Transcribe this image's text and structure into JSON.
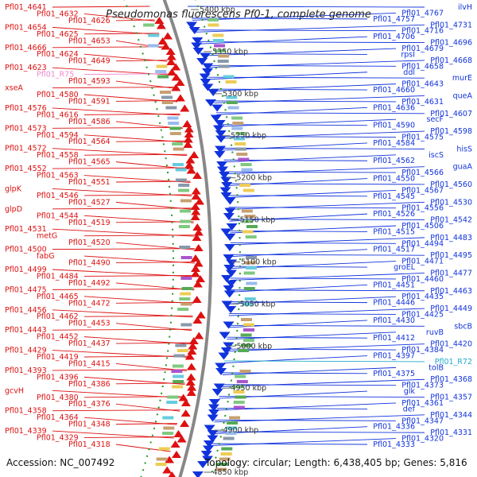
{
  "title": "Pseudomonas fluorescens Pf0-1, complete genome",
  "footer": {
    "accession": "Accession: NC_007492",
    "topology": "Topology: circular; Length: 6,438,405 bp; Genes: 5,816"
  },
  "colors": {
    "minus_strand": "#dd1111",
    "plus_strand": "#1133dd",
    "rna": "#ee88cc",
    "trna": "#22aacc",
    "backbone": "#888888",
    "tick": "#229922"
  },
  "scale_ticks": [
    "5400 kbp",
    "5350 kbp",
    "5300 kbp",
    "5250 kbp",
    "5200 kbp",
    "5150 kbp",
    "5100 kbp",
    "5050 kbp",
    "5000 kbp",
    "4950 kbp",
    "4900 kbp",
    "4850 kbp"
  ],
  "left_labels": [
    {
      "text": "Pfl01_4641",
      "strand": "minus"
    },
    {
      "text": "Pfl01_4632",
      "strand": "minus"
    },
    {
      "text": "Pfl01_4626",
      "strand": "minus"
    },
    {
      "text": "Pfl01_4654",
      "strand": "minus"
    },
    {
      "text": "Pfl01_4625",
      "strand": "minus"
    },
    {
      "text": "Pfl01_4653",
      "strand": "minus"
    },
    {
      "text": "Pfl01_4666",
      "strand": "minus"
    },
    {
      "text": "Pfl01_4624",
      "strand": "minus"
    },
    {
      "text": "Pfl01_4649",
      "strand": "minus"
    },
    {
      "text": "Pfl01_4623",
      "strand": "minus"
    },
    {
      "text": "Pfl01_R75",
      "strand": "rna"
    },
    {
      "text": "Pfl01_4593",
      "strand": "minus"
    },
    {
      "text": "xseA",
      "strand": "minus"
    },
    {
      "text": "Pfl01_4580",
      "strand": "minus"
    },
    {
      "text": "Pfl01_4591",
      "strand": "minus"
    },
    {
      "text": "Pfl01_4576",
      "strand": "minus"
    },
    {
      "text": "Pfl01_4616",
      "strand": "minus"
    },
    {
      "text": "Pfl01_4586",
      "strand": "minus"
    },
    {
      "text": "Pfl01_4573",
      "strand": "minus"
    },
    {
      "text": "Pfl01_4594",
      "strand": "minus"
    },
    {
      "text": "Pfl01_4564",
      "strand": "minus"
    },
    {
      "text": "Pfl01_4572",
      "strand": "minus"
    },
    {
      "text": "Pfl01_4558",
      "strand": "minus"
    },
    {
      "text": "Pfl01_4565",
      "strand": "minus"
    },
    {
      "text": "Pfl01_4552",
      "strand": "minus"
    },
    {
      "text": "Pfl01_4563",
      "strand": "minus"
    },
    {
      "text": "Pfl01_4551",
      "strand": "minus"
    },
    {
      "text": "glpK",
      "strand": "minus"
    },
    {
      "text": "Pfl01_4546",
      "strand": "minus"
    },
    {
      "text": "Pfl01_4527",
      "strand": "minus"
    },
    {
      "text": "glpD",
      "strand": "minus"
    },
    {
      "text": "Pfl01_4544",
      "strand": "minus"
    },
    {
      "text": "Pfl01_4519",
      "strand": "minus"
    },
    {
      "text": "Pfl01_4531",
      "strand": "minus"
    },
    {
      "text": "metG",
      "strand": "minus"
    },
    {
      "text": "Pfl01_4520",
      "strand": "minus"
    },
    {
      "text": "Pfl01_4500",
      "strand": "minus"
    },
    {
      "text": "fabG",
      "strand": "minus"
    },
    {
      "text": "Pfl01_4490",
      "strand": "minus"
    },
    {
      "text": "Pfl01_4499",
      "strand": "minus"
    },
    {
      "text": "Pfl01_4484",
      "strand": "minus"
    },
    {
      "text": "Pfl01_4492",
      "strand": "minus"
    },
    {
      "text": "Pfl01_4475",
      "strand": "minus"
    },
    {
      "text": "Pfl01_4465",
      "strand": "minus"
    },
    {
      "text": "Pfl01_4472",
      "strand": "minus"
    },
    {
      "text": "Pfl01_4456",
      "strand": "minus"
    },
    {
      "text": "Pfl01_4462",
      "strand": "minus"
    },
    {
      "text": "Pfl01_4453",
      "strand": "minus"
    },
    {
      "text": "Pfl01_4443",
      "strand": "minus"
    },
    {
      "text": "Pfl01_4452",
      "strand": "minus"
    },
    {
      "text": "Pfl01_4437",
      "strand": "minus"
    },
    {
      "text": "Pfl01_4429",
      "strand": "minus"
    },
    {
      "text": "Pfl01_4419",
      "strand": "minus"
    },
    {
      "text": "Pfl01_4415",
      "strand": "minus"
    },
    {
      "text": "Pfl01_4393",
      "strand": "minus"
    },
    {
      "text": "Pfl01_4396",
      "strand": "minus"
    },
    {
      "text": "Pfl01_4386",
      "strand": "minus"
    },
    {
      "text": "gcvH",
      "strand": "minus"
    },
    {
      "text": "Pfl01_4380",
      "strand": "minus"
    },
    {
      "text": "Pfl01_4376",
      "strand": "minus"
    },
    {
      "text": "Pfl01_4358",
      "strand": "minus"
    },
    {
      "text": "Pfl01_4364",
      "strand": "minus"
    },
    {
      "text": "Pfl01_4348",
      "strand": "minus"
    },
    {
      "text": "Pfl01_4339",
      "strand": "minus"
    },
    {
      "text": "Pfl01_4329",
      "strand": "minus"
    },
    {
      "text": "Pfl01_4318",
      "strand": "minus"
    }
  ],
  "right_labels": [
    {
      "text": "ilvH",
      "strand": "plus"
    },
    {
      "text": "Pfl01_4767",
      "strand": "plus"
    },
    {
      "text": "Pfl01_4757",
      "strand": "plus"
    },
    {
      "text": "Pfl01_4731",
      "strand": "plus"
    },
    {
      "text": "Pfl01_4716",
      "strand": "plus"
    },
    {
      "text": "Pfl01_4706",
      "strand": "plus"
    },
    {
      "text": "Pfl01_4696",
      "strand": "plus"
    },
    {
      "text": "Pfl01_4679",
      "strand": "plus"
    },
    {
      "text": "rpsI",
      "strand": "plus"
    },
    {
      "text": "Pfl01_4668",
      "strand": "plus"
    },
    {
      "text": "Pfl01_4658",
      "strand": "plus"
    },
    {
      "text": "ddl",
      "strand": "plus"
    },
    {
      "text": "murE",
      "strand": "plus"
    },
    {
      "text": "Pfl01_4643",
      "strand": "plus"
    },
    {
      "text": "Pfl01_4660",
      "strand": "plus"
    },
    {
      "text": "queA",
      "strand": "plus"
    },
    {
      "text": "Pfl01_4631",
      "strand": "plus"
    },
    {
      "text": "Pfl01_4636",
      "strand": "plus"
    },
    {
      "text": "Pfl01_4607",
      "strand": "plus"
    },
    {
      "text": "secF",
      "strand": "plus"
    },
    {
      "text": "Pfl01_4590",
      "strand": "plus"
    },
    {
      "text": "Pfl01_4598",
      "strand": "plus"
    },
    {
      "text": "Pfl01_4575",
      "strand": "plus"
    },
    {
      "text": "Pfl01_4584",
      "strand": "plus"
    },
    {
      "text": "hisS",
      "strand": "plus"
    },
    {
      "text": "iscS",
      "strand": "plus"
    },
    {
      "text": "Pfl01_4562",
      "strand": "plus"
    },
    {
      "text": "guaA",
      "strand": "plus"
    },
    {
      "text": "Pfl01_4566",
      "strand": "plus"
    },
    {
      "text": "Pfl01_4550",
      "strand": "plus"
    },
    {
      "text": "Pfl01_4560",
      "strand": "plus"
    },
    {
      "text": "Pfl01_4567",
      "strand": "plus"
    },
    {
      "text": "Pfl01_4545",
      "strand": "plus"
    },
    {
      "text": "Pfl01_4530",
      "strand": "plus"
    },
    {
      "text": "Pfl01_4556",
      "strand": "plus"
    },
    {
      "text": "Pfl01_4526",
      "strand": "plus"
    },
    {
      "text": "Pfl01_4542",
      "strand": "plus"
    },
    {
      "text": "Pfl01_4506",
      "strand": "plus"
    },
    {
      "text": "Pfl01_4515",
      "strand": "plus"
    },
    {
      "text": "Pfl01_4483",
      "strand": "plus"
    },
    {
      "text": "Pfl01_4494",
      "strand": "plus"
    },
    {
      "text": "Pfl01_4517",
      "strand": "plus"
    },
    {
      "text": "Pfl01_4495",
      "strand": "plus"
    },
    {
      "text": "Pfl01_4471",
      "strand": "plus"
    },
    {
      "text": "groEL",
      "strand": "plus"
    },
    {
      "text": "Pfl01_4477",
      "strand": "plus"
    },
    {
      "text": "Pfl01_4460",
      "strand": "plus"
    },
    {
      "text": "Pfl01_4451",
      "strand": "plus"
    },
    {
      "text": "Pfl01_4463",
      "strand": "plus"
    },
    {
      "text": "Pfl01_4435",
      "strand": "plus"
    },
    {
      "text": "Pfl01_4446",
      "strand": "plus"
    },
    {
      "text": "Pfl01_4449",
      "strand": "plus"
    },
    {
      "text": "Pfl01_4425",
      "strand": "plus"
    },
    {
      "text": "Pfl01_4430",
      "strand": "plus"
    },
    {
      "text": "sbcB",
      "strand": "plus"
    },
    {
      "text": "ruvB",
      "strand": "plus"
    },
    {
      "text": "Pfl01_4412",
      "strand": "plus"
    },
    {
      "text": "Pfl01_4420",
      "strand": "plus"
    },
    {
      "text": "Pfl01_4384",
      "strand": "plus"
    },
    {
      "text": "Pfl01_4397",
      "strand": "plus"
    },
    {
      "text": "Pfl01_R72",
      "strand": "trna"
    },
    {
      "text": "tolB",
      "strand": "plus"
    },
    {
      "text": "Pfl01_4375",
      "strand": "plus"
    },
    {
      "text": "Pfl01_4368",
      "strand": "plus"
    },
    {
      "text": "Pfl01_4373",
      "strand": "plus"
    },
    {
      "text": "glk",
      "strand": "plus"
    },
    {
      "text": "Pfl01_4357",
      "strand": "plus"
    },
    {
      "text": "Pfl01_4361",
      "strand": "plus"
    },
    {
      "text": "def",
      "strand": "plus"
    },
    {
      "text": "Pfl01_4344",
      "strand": "plus"
    },
    {
      "text": "Pfl01_4347",
      "strand": "plus"
    },
    {
      "text": "Pfl01_4336",
      "strand": "plus"
    },
    {
      "text": "Pfl01_4331",
      "strand": "plus"
    },
    {
      "text": "Pfl01_4320",
      "strand": "plus"
    },
    {
      "text": "Pfl01_4333",
      "strand": "plus"
    }
  ]
}
